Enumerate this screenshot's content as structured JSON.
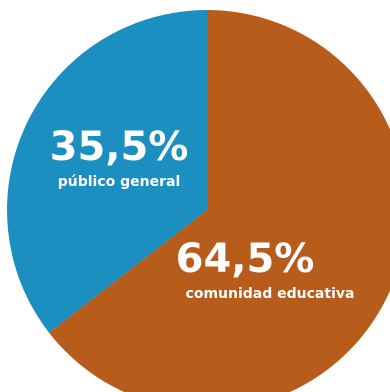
{
  "chart_data": {
    "type": "pie",
    "slices": [
      {
        "label": "comunidad educativa",
        "value": 64.5,
        "value_label": "64,5%",
        "color": "#B85C1C"
      },
      {
        "label": "público general",
        "value": 35.5,
        "value_label": "35,5%",
        "color": "#1A8FC0"
      }
    ],
    "start": "12 o'clock",
    "direction": "clockwise"
  }
}
